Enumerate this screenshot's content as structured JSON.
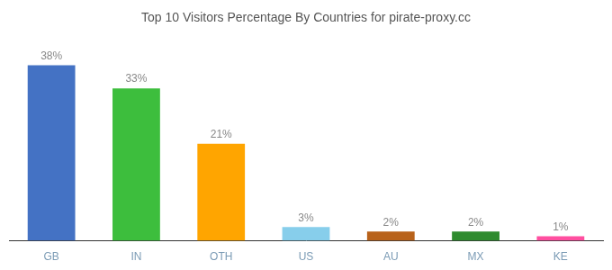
{
  "chart_data": {
    "type": "bar",
    "title": "Top 10 Visitors Percentage By Countries for pirate-proxy.cc",
    "categories": [
      "GB",
      "IN",
      "OTH",
      "US",
      "AU",
      "MX",
      "KE"
    ],
    "values": [
      38,
      33,
      21,
      3,
      2,
      2,
      1
    ],
    "value_labels": [
      "38%",
      "33%",
      "21%",
      "3%",
      "2%",
      "2%",
      "1%"
    ],
    "colors": [
      "#4472C4",
      "#3DBE3D",
      "#FFA500",
      "#87CEEB",
      "#B8621A",
      "#2E8B2E",
      "#FF4FA0"
    ],
    "ylim": [
      0,
      43
    ],
    "grid": false,
    "data_labels": true,
    "tick_labels": "x"
  }
}
